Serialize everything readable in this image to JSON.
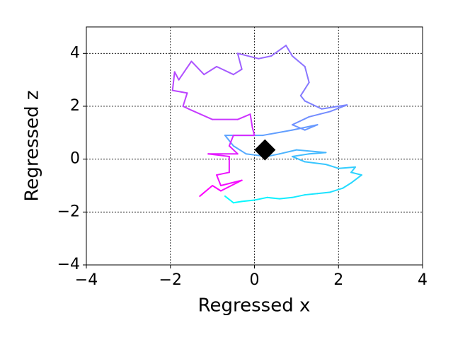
{
  "chart_data": {
    "type": "line",
    "xlabel": "Regressed x",
    "ylabel": "Regressed z",
    "xlim": [
      -4,
      4
    ],
    "ylim": [
      -4,
      5
    ],
    "xticks": [
      {
        "value": -4,
        "label": "−4"
      },
      {
        "value": -2,
        "label": "−2"
      },
      0,
      2,
      4
    ],
    "yticks": [
      {
        "value": -4,
        "label": "−4"
      },
      {
        "value": -2,
        "label": "−2"
      },
      0,
      2,
      4
    ],
    "grid": true,
    "series": [
      {
        "colormap": [
          "#00ffff",
          "#ff00ff"
        ],
        "x": [
          -0.7,
          -0.5,
          -0.3,
          0,
          0.3,
          0.6,
          0.9,
          1.2,
          1.5,
          1.8,
          2.1,
          2.3,
          2.55,
          2.3,
          2.4,
          2.0,
          1.7,
          1.2,
          0.9,
          1.3,
          1.7,
          1.0,
          0.6,
          0.3,
          -0.2,
          -0.5,
          -0.7,
          0.2,
          0.9,
          1.5,
          1.2,
          0.9,
          1.3,
          1.8,
          2.2,
          1.6,
          1.2,
          1.1,
          1.3,
          1.2,
          0.9,
          0.75,
          0.4,
          0.1,
          -0.4,
          -0.3,
          -0.5,
          -0.9,
          -1.2,
          -1.5,
          -1.8,
          -1.9,
          -1.95,
          -1.6,
          -1.7,
          -1.5,
          -1.0,
          -0.4,
          -0.1,
          -0.05,
          0,
          -0.5,
          -0.6,
          -0.4,
          -1.1,
          -0.6,
          -0.6,
          -0.9,
          -0.8,
          -0.3,
          -0.8,
          -1.0,
          -1.3
        ],
        "y": [
          -1.4,
          -1.65,
          -1.6,
          -1.55,
          -1.45,
          -1.5,
          -1.45,
          -1.35,
          -1.3,
          -1.25,
          -1.1,
          -0.9,
          -0.6,
          -0.5,
          -0.3,
          -0.35,
          -0.2,
          -0.1,
          0.1,
          0.2,
          0.25,
          0.35,
          0.2,
          0.1,
          0.2,
          0.5,
          0.9,
          0.9,
          1.1,
          1.3,
          1.1,
          1.3,
          1.6,
          1.8,
          2.05,
          1.9,
          2.2,
          2.4,
          2.9,
          3.5,
          3.9,
          4.3,
          3.9,
          3.8,
          4.0,
          3.4,
          3.2,
          3.5,
          3.2,
          3.7,
          3.0,
          3.3,
          2.6,
          2.5,
          2.0,
          1.85,
          1.5,
          1.5,
          1.7,
          1.2,
          0.9,
          0.9,
          0.5,
          0.2,
          0.2,
          0.1,
          -0.5,
          -0.6,
          -1.0,
          -0.8,
          -1.2,
          -1.0,
          -1.4
        ]
      },
      {
        "marker": "diamond",
        "color": "#000000",
        "x": [
          0.25
        ],
        "y": [
          0.35
        ]
      }
    ]
  }
}
